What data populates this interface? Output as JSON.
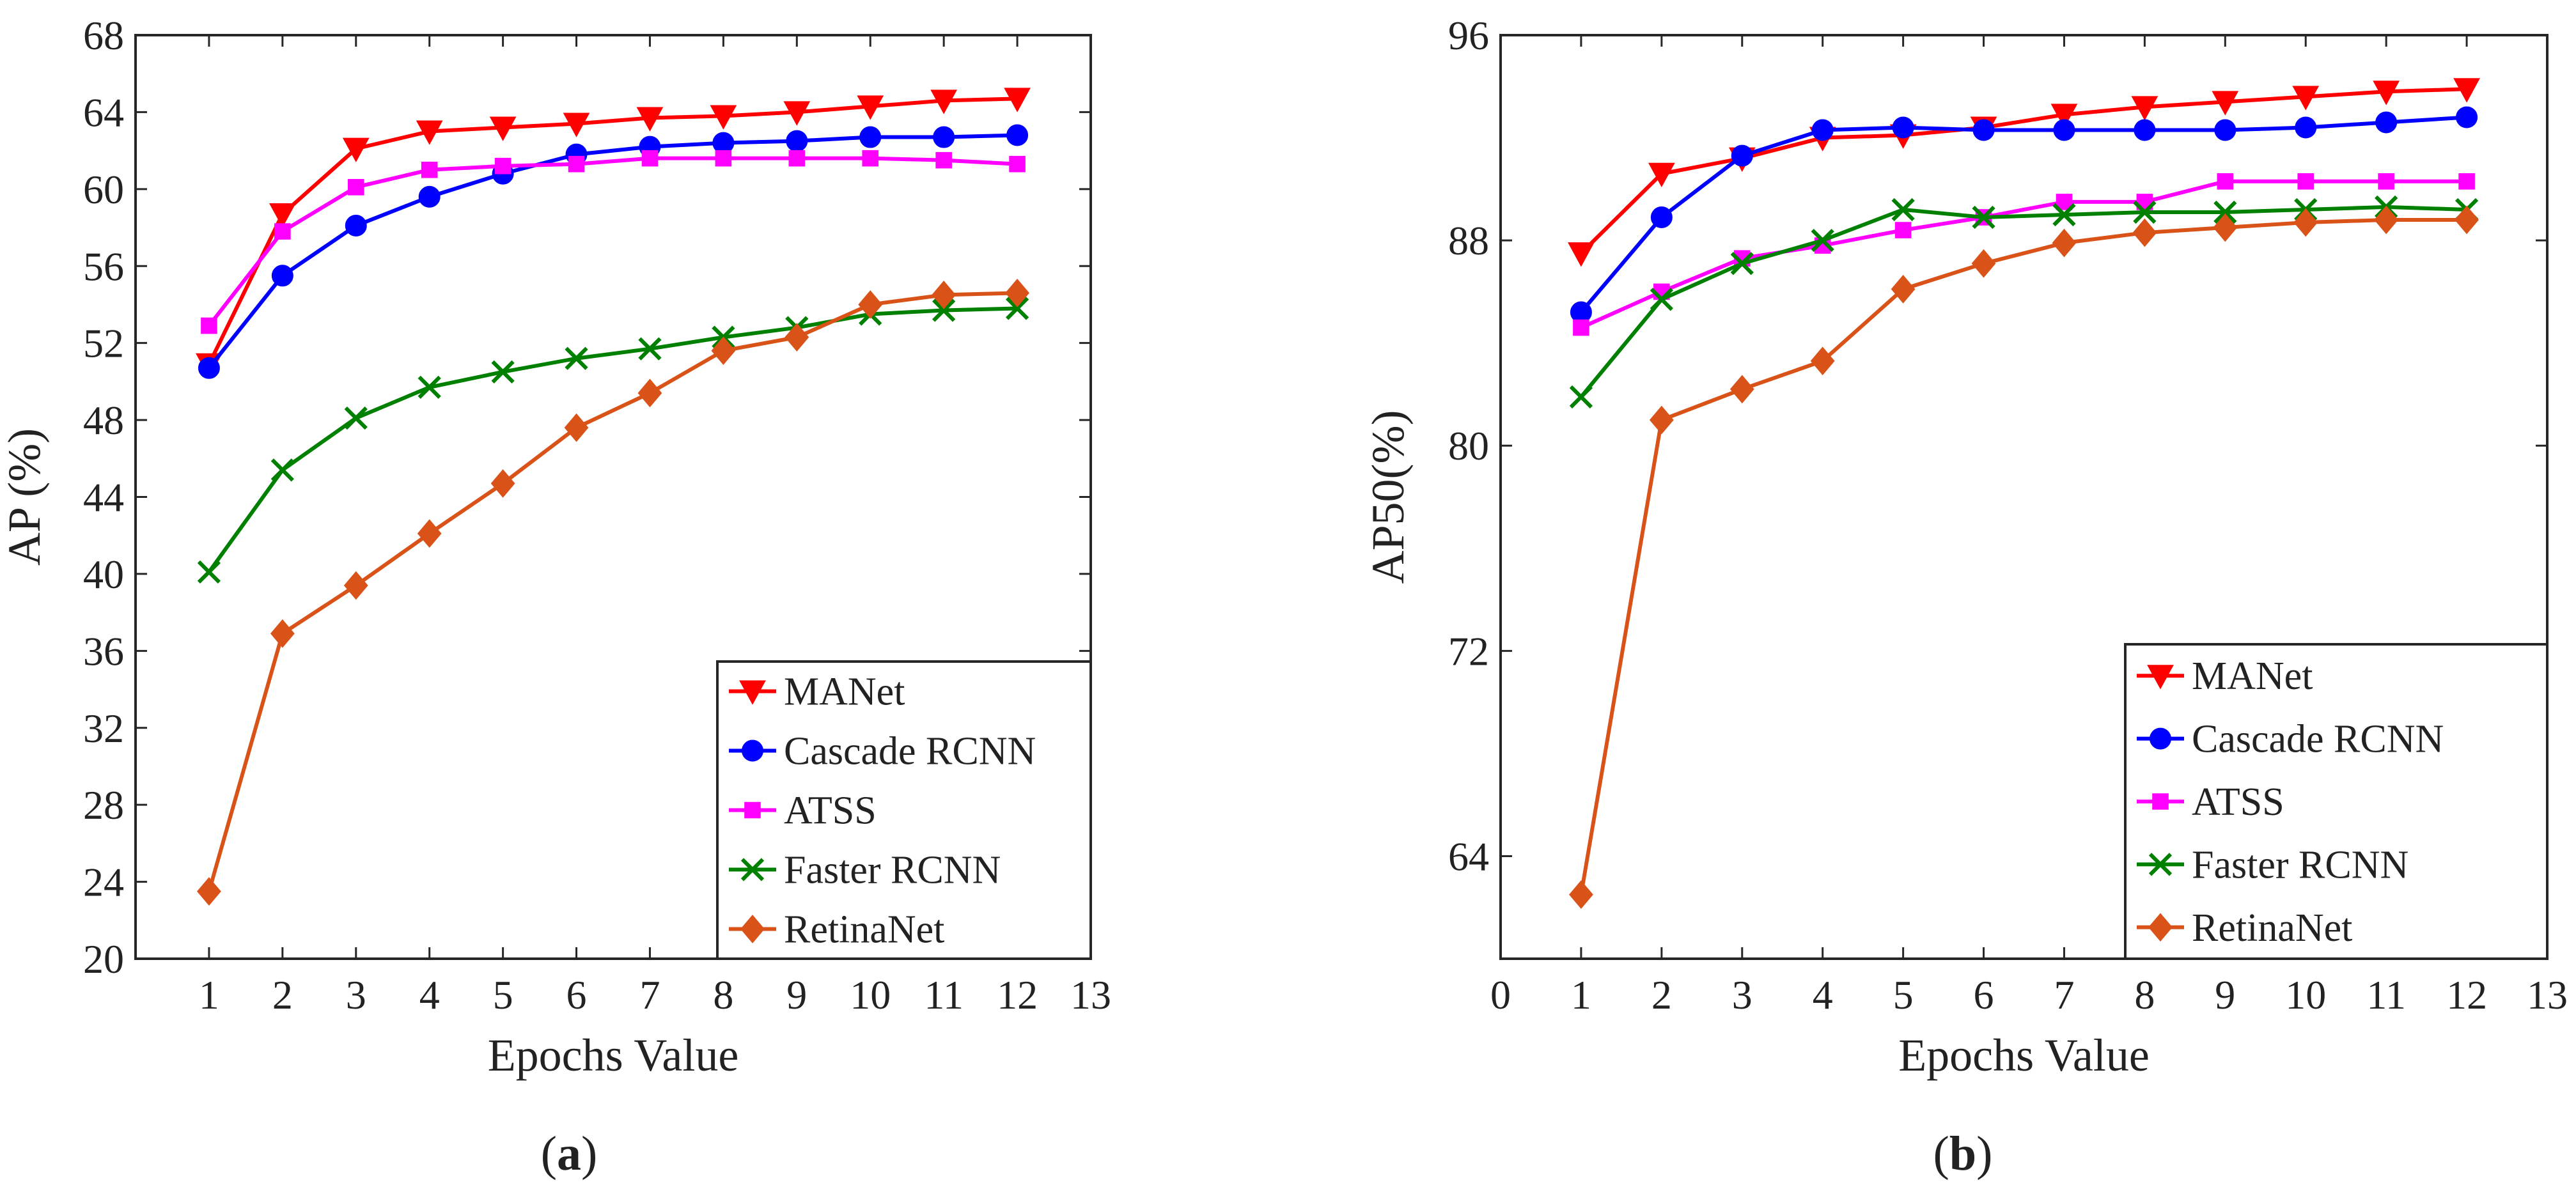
{
  "chart_data": [
    {
      "type": "line",
      "id": "a",
      "caption_letter": "a",
      "caption_open": "(",
      "caption_close": ")",
      "xlabel": "Epochs Value",
      "ylabel": "AP (%)",
      "xlim": [
        0,
        13
      ],
      "ylim": [
        20,
        68
      ],
      "xticks": [
        1,
        2,
        3,
        4,
        5,
        6,
        7,
        8,
        9,
        10,
        11,
        12,
        13
      ],
      "yticks": [
        20,
        24,
        28,
        32,
        36,
        40,
        44,
        48,
        52,
        56,
        60,
        64,
        68
      ],
      "x": [
        1,
        2,
        3,
        4,
        5,
        6,
        7,
        8,
        9,
        10,
        11,
        12
      ],
      "legend_position": "bottom-right",
      "series": [
        {
          "name": "MANet",
          "color": "#ff0000",
          "marker": "triangle-down",
          "values": [
            50.9,
            58.7,
            62.1,
            63.0,
            63.2,
            63.4,
            63.7,
            63.8,
            64.0,
            64.3,
            64.6,
            64.7
          ]
        },
        {
          "name": "Cascade RCNN",
          "color": "#0000ff",
          "marker": "circle",
          "values": [
            50.7,
            55.5,
            58.1,
            59.6,
            60.8,
            61.8,
            62.2,
            62.4,
            62.5,
            62.7,
            62.7,
            62.8
          ]
        },
        {
          "name": "ATSS",
          "color": "#ff00ff",
          "marker": "square",
          "values": [
            52.9,
            57.8,
            60.1,
            61.0,
            61.2,
            61.3,
            61.6,
            61.6,
            61.6,
            61.6,
            61.5,
            61.3
          ]
        },
        {
          "name": "Faster RCNN",
          "color": "#008000",
          "marker": "x",
          "values": [
            40.1,
            45.4,
            48.1,
            49.7,
            50.5,
            51.2,
            51.7,
            52.3,
            52.8,
            53.5,
            53.7,
            53.8
          ]
        },
        {
          "name": "RetinaNet",
          "color": "#d95319",
          "marker": "diamond",
          "values": [
            23.5,
            36.9,
            39.4,
            42.1,
            44.7,
            47.6,
            49.4,
            51.6,
            52.3,
            54.0,
            54.5,
            54.6
          ]
        }
      ]
    },
    {
      "type": "line",
      "id": "b",
      "caption_letter": "b",
      "caption_open": "(",
      "caption_close": ")",
      "xlabel": "Epochs Value",
      "ylabel": "AP50(%)",
      "xlim": [
        0,
        13
      ],
      "ylim": [
        60,
        96
      ],
      "xticks": [
        0,
        1,
        2,
        3,
        4,
        5,
        6,
        7,
        8,
        9,
        10,
        11,
        12,
        13
      ],
      "yticks": [
        64,
        72,
        80,
        88,
        96
      ],
      "x": [
        1,
        2,
        3,
        4,
        5,
        6,
        7,
        8,
        9,
        10,
        11,
        12
      ],
      "legend_position": "bottom-right",
      "series": [
        {
          "name": "MANet",
          "color": "#ff0000",
          "marker": "triangle-down",
          "values": [
            87.5,
            90.6,
            91.2,
            92.0,
            92.1,
            92.4,
            92.9,
            93.2,
            93.4,
            93.6,
            93.8,
            93.9
          ]
        },
        {
          "name": "Cascade RCNN",
          "color": "#0000ff",
          "marker": "circle",
          "values": [
            85.2,
            88.9,
            91.3,
            92.3,
            92.4,
            92.3,
            92.3,
            92.3,
            92.3,
            92.4,
            92.6,
            92.8
          ]
        },
        {
          "name": "ATSS",
          "color": "#ff00ff",
          "marker": "square",
          "values": [
            84.6,
            86.0,
            87.3,
            87.8,
            88.4,
            88.9,
            89.5,
            89.5,
            90.3,
            90.3,
            90.3,
            90.3
          ]
        },
        {
          "name": "Faster RCNN",
          "color": "#008000",
          "marker": "x",
          "values": [
            81.9,
            85.7,
            87.1,
            88.0,
            89.2,
            88.9,
            89.0,
            89.1,
            89.1,
            89.2,
            89.3,
            89.2
          ]
        },
        {
          "name": "RetinaNet",
          "color": "#d95319",
          "marker": "diamond",
          "values": [
            62.5,
            81.0,
            82.2,
            83.3,
            86.1,
            87.1,
            87.9,
            88.3,
            88.5,
            88.7,
            88.8,
            88.8
          ]
        }
      ]
    }
  ]
}
